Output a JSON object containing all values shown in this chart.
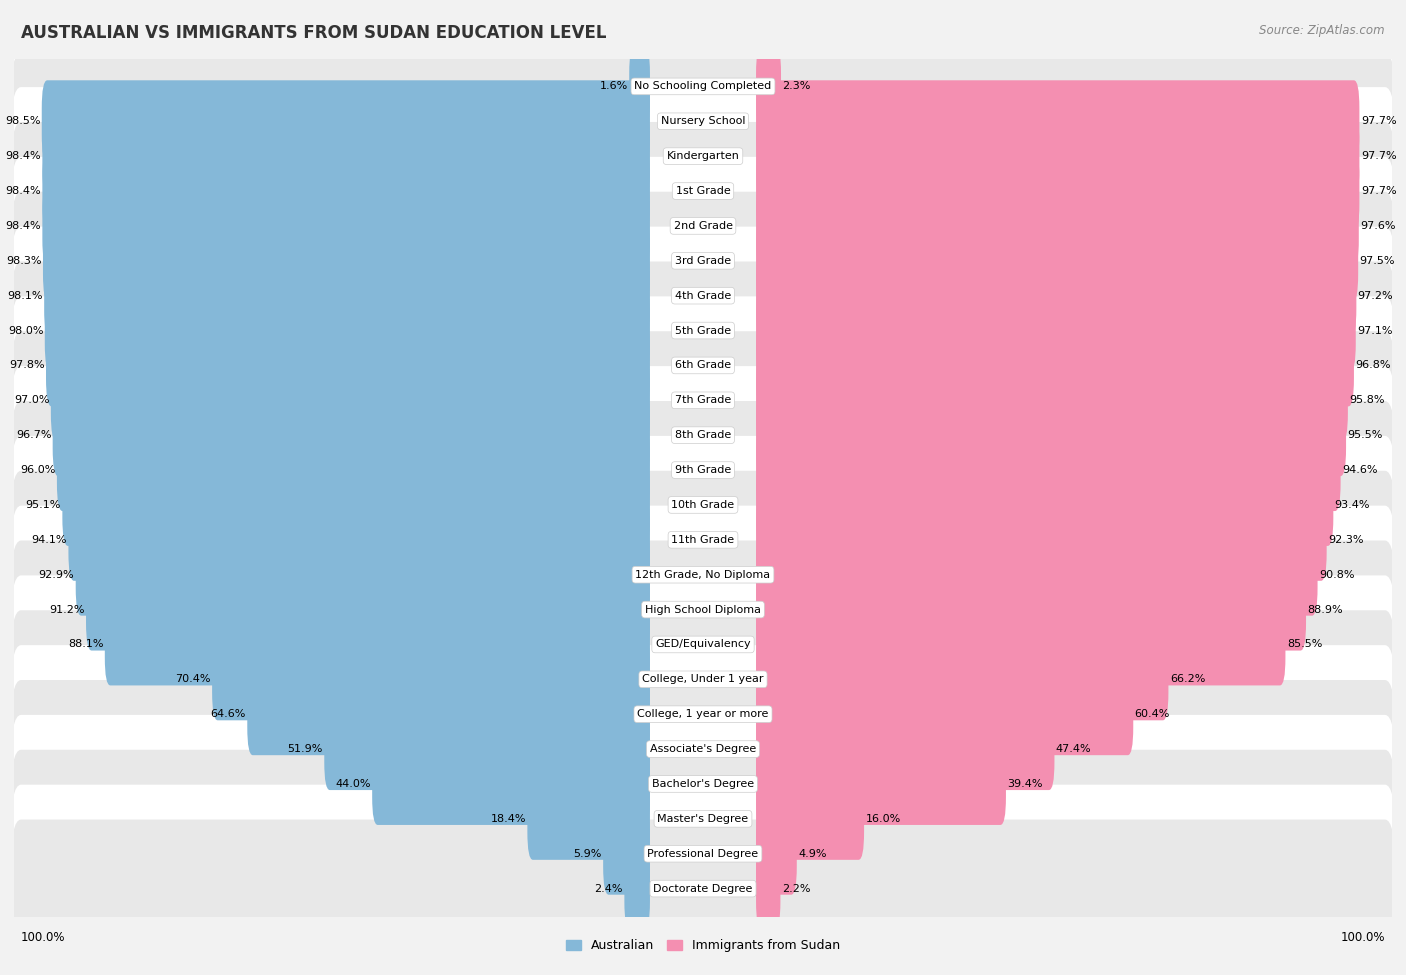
{
  "title": "AUSTRALIAN VS IMMIGRANTS FROM SUDAN EDUCATION LEVEL",
  "source": "Source: ZipAtlas.com",
  "categories": [
    "No Schooling Completed",
    "Nursery School",
    "Kindergarten",
    "1st Grade",
    "2nd Grade",
    "3rd Grade",
    "4th Grade",
    "5th Grade",
    "6th Grade",
    "7th Grade",
    "8th Grade",
    "9th Grade",
    "10th Grade",
    "11th Grade",
    "12th Grade, No Diploma",
    "High School Diploma",
    "GED/Equivalency",
    "College, Under 1 year",
    "College, 1 year or more",
    "Associate's Degree",
    "Bachelor's Degree",
    "Master's Degree",
    "Professional Degree",
    "Doctorate Degree"
  ],
  "australian": [
    1.6,
    98.5,
    98.4,
    98.4,
    98.4,
    98.3,
    98.1,
    98.0,
    97.8,
    97.0,
    96.7,
    96.0,
    95.1,
    94.1,
    92.9,
    91.2,
    88.1,
    70.4,
    64.6,
    51.9,
    44.0,
    18.4,
    5.9,
    2.4
  ],
  "sudan": [
    2.3,
    97.7,
    97.7,
    97.7,
    97.6,
    97.5,
    97.2,
    97.1,
    96.8,
    95.8,
    95.5,
    94.6,
    93.4,
    92.3,
    90.8,
    88.9,
    85.5,
    66.2,
    60.4,
    47.4,
    39.4,
    16.0,
    4.9,
    2.2
  ],
  "australian_color": "#85b8d8",
  "sudan_color": "#f48fb1",
  "bg_color": "#f2f2f2",
  "row_color_even": "#ffffff",
  "row_color_odd": "#e8e8e8",
  "title_fontsize": 12,
  "source_fontsize": 8.5,
  "label_fontsize": 8,
  "value_fontsize": 8
}
